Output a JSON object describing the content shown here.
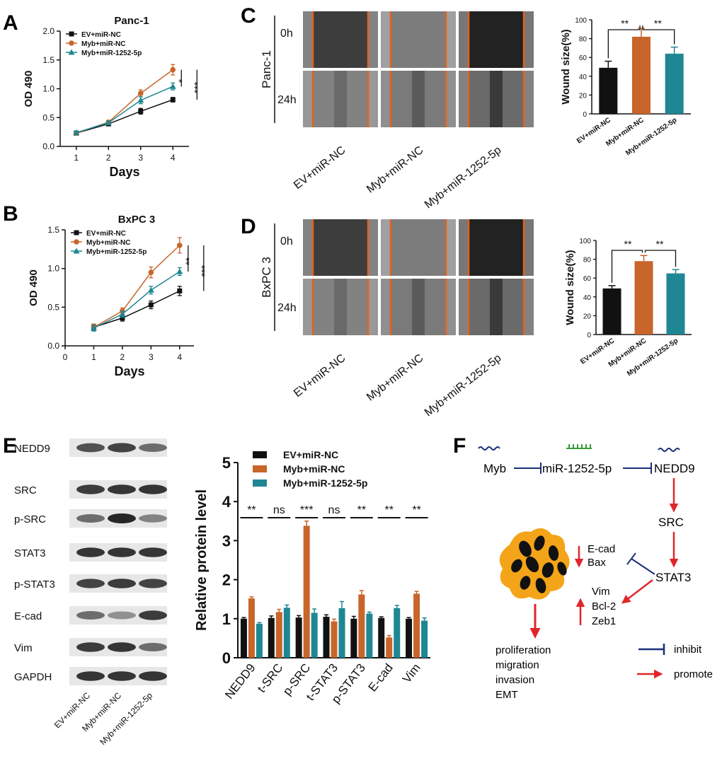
{
  "panel_letters": {
    "A": "A",
    "B": "B",
    "C": "C",
    "D": "D",
    "E": "E",
    "F": "F"
  },
  "colors": {
    "ev": "#111111",
    "myb": "#c8652a",
    "mir": "#1e8793",
    "inhibit": "#1a2f7a",
    "promote": "#e0262a",
    "cell_fill": "#f4a418",
    "cell_spot": "#111111"
  },
  "chart_data": [
    {
      "id": "A",
      "type": "line",
      "title": "Panc-1",
      "xlabel": "Days",
      "ylabel": "OD 490",
      "x": [
        1,
        2,
        3,
        4
      ],
      "xlim": [
        0.5,
        4.5
      ],
      "ylim": [
        0,
        2.0
      ],
      "yticks": [
        "0.0",
        "0.5",
        "1.0",
        "1.5",
        "2.0"
      ],
      "xticks": [
        "1",
        "2",
        "3",
        "4"
      ],
      "series": [
        {
          "name": "EV+miR-NC",
          "values": [
            0.23,
            0.39,
            0.61,
            0.81
          ],
          "err": [
            0.03,
            0.03,
            0.05,
            0.04
          ],
          "marker": "square"
        },
        {
          "name": "Myb+miR-NC",
          "values": [
            0.23,
            0.42,
            0.92,
            1.33
          ],
          "err": [
            0.03,
            0.03,
            0.06,
            0.09
          ],
          "marker": "circle"
        },
        {
          "name": "Myb+miR-1252-5p",
          "values": [
            0.24,
            0.41,
            0.8,
            1.04
          ],
          "err": [
            0.03,
            0.03,
            0.06,
            0.06
          ],
          "marker": "triangle"
        }
      ],
      "sig": [
        "*",
        "***"
      ]
    },
    {
      "id": "B",
      "type": "line",
      "title": "BxPC 3",
      "xlabel": "Days",
      "ylabel": "OD 490",
      "x": [
        1,
        2,
        3,
        4
      ],
      "xlim": [
        0,
        4.5
      ],
      "ylim": [
        0,
        1.5
      ],
      "yticks": [
        "0.0",
        "0.5",
        "1.0",
        "1.5"
      ],
      "xticks": [
        "0",
        "1",
        "2",
        "3",
        "4"
      ],
      "series": [
        {
          "name": "EV+miR-NC",
          "values": [
            0.24,
            0.36,
            0.53,
            0.71
          ],
          "err": [
            0.04,
            0.04,
            0.05,
            0.06
          ],
          "marker": "square"
        },
        {
          "name": "Myb+miR-NC",
          "values": [
            0.24,
            0.45,
            0.95,
            1.3
          ],
          "err": [
            0.04,
            0.04,
            0.07,
            0.1
          ],
          "marker": "circle"
        },
        {
          "name": "Myb+miR-1252-5p",
          "values": [
            0.23,
            0.41,
            0.72,
            0.96
          ],
          "err": [
            0.04,
            0.04,
            0.05,
            0.05
          ],
          "marker": "triangle"
        }
      ],
      "sig": [
        "**",
        "***"
      ]
    },
    {
      "id": "C-bar",
      "type": "bar",
      "ylabel": "Wound size(%)",
      "ylim": [
        0,
        100
      ],
      "yticks": [
        "0",
        "20",
        "40",
        "60",
        "80",
        "100"
      ],
      "categories": [
        "EV+miR-NC",
        "Myb+miR-NC",
        "Myb+miR-1252-5p"
      ],
      "values": [
        49,
        82,
        64
      ],
      "err": [
        7,
        9,
        7
      ],
      "sig": [
        "**",
        "**"
      ]
    },
    {
      "id": "D-bar",
      "type": "bar",
      "ylabel": "Wound size(%)",
      "ylim": [
        0,
        100
      ],
      "yticks": [
        "0",
        "20",
        "40",
        "60",
        "80",
        "100"
      ],
      "categories": [
        "EV+miR-NC",
        "Myb+miR-NC",
        "Myb+miR-1252-5p"
      ],
      "values": [
        49,
        78,
        65
      ],
      "err": [
        3,
        6,
        4
      ],
      "sig": [
        "**",
        "**"
      ]
    },
    {
      "id": "E-bar",
      "type": "bar",
      "ylabel": "Relative protein level",
      "ylim": [
        0,
        5
      ],
      "yticks": [
        "0",
        "1",
        "2",
        "3",
        "4",
        "5"
      ],
      "categories": [
        "NEDD9",
        "t-SRC",
        "p-SRC",
        "t-STAT3",
        "p-STAT3",
        "E-cad",
        "Vim"
      ],
      "series": [
        {
          "name": "EV+miR-NC",
          "values": [
            1.0,
            1.02,
            1.03,
            1.05,
            1.0,
            1.02,
            1.0
          ],
          "err": [
            0.03,
            0.05,
            0.05,
            0.05,
            0.06,
            0.03,
            0.03
          ]
        },
        {
          "name": "Myb+miR-NC",
          "values": [
            1.52,
            1.17,
            3.38,
            0.93,
            1.62,
            0.52,
            1.64
          ],
          "err": [
            0.04,
            0.07,
            0.12,
            0.06,
            0.1,
            0.05,
            0.06
          ]
        },
        {
          "name": "Myb+miR-1252-5p",
          "values": [
            0.87,
            1.28,
            1.15,
            1.27,
            1.13,
            1.27,
            0.95
          ],
          "err": [
            0.03,
            0.07,
            0.1,
            0.17,
            0.04,
            0.07,
            0.07
          ]
        }
      ],
      "sig": [
        "**",
        "ns",
        "***",
        "ns",
        "**",
        "**",
        "**"
      ]
    }
  ],
  "wound_C": {
    "cell_line": "Panc-1",
    "times": [
      "0h",
      "24h"
    ],
    "conditions": [
      "EV+miR-NC",
      "Myb+miR-NC",
      "Myb+miR-1252-5p"
    ]
  },
  "wound_D": {
    "cell_line": "BxPC 3",
    "times": [
      "0h",
      "24h"
    ],
    "conditions": [
      "EV+miR-NC",
      "Myb+miR-NC",
      "Myb+miR-1252-5p"
    ]
  },
  "western": {
    "proteins": [
      "NEDD9",
      "SRC",
      "p-SRC",
      "STAT3",
      "p-STAT3",
      "E-cad",
      "Vim",
      "GAPDH"
    ],
    "lanes": [
      "EV+miR-NC",
      "Myb+miR-NC",
      "Myb+miR-1252-5p"
    ]
  },
  "pathway": {
    "myb": "Myb",
    "mir": "miR-1252-5p",
    "nedd9": "NEDD9",
    "src": "SRC",
    "stat3": "STAT3",
    "down_genes": [
      "E-cad",
      "Bax"
    ],
    "up_genes": [
      "Vim",
      "Bcl-2",
      "Zeb1"
    ],
    "outcomes": [
      "proliferation",
      "migration",
      "invasion",
      "EMT"
    ],
    "legend": {
      "inhibit": "inhibit",
      "promote": "promote"
    }
  }
}
